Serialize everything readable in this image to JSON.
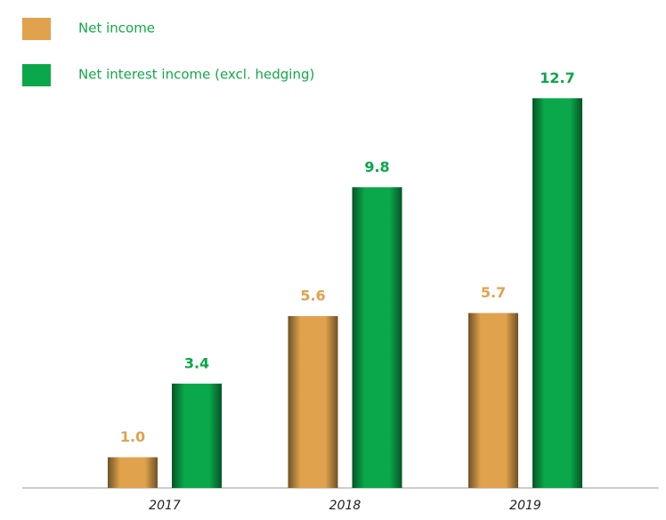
{
  "chart_data": {
    "type": "bar",
    "categories": [
      "2017",
      "2018",
      "2019"
    ],
    "series": [
      {
        "name": "Net income",
        "color": "#e0a24d",
        "values": [
          1.0,
          5.6,
          5.7
        ],
        "value_labels": [
          "1.0",
          "5.6",
          "5.7"
        ]
      },
      {
        "name": "Net interest income (excl. hedging)",
        "color": "#0aa84a",
        "values": [
          3.4,
          9.8,
          12.7
        ]
      }
    ],
    "ylim": [
      0,
      13
    ]
  }
}
